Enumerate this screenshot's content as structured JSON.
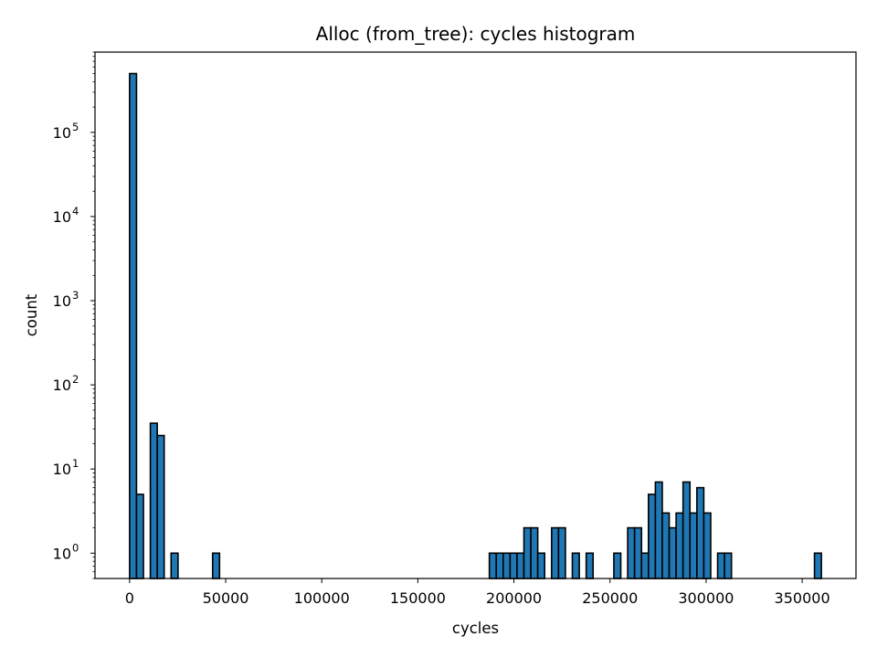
{
  "chart_data": {
    "type": "bar",
    "title": "Alloc (from_tree): cycles histogram",
    "xlabel": "cycles",
    "ylabel": "count",
    "yscale": "log",
    "xlim": [
      -18000,
      378000
    ],
    "ylim": [
      0.5,
      900000
    ],
    "x_ticks": [
      0,
      50000,
      100000,
      150000,
      200000,
      250000,
      300000,
      350000
    ],
    "x_tick_labels": [
      "0",
      "50000",
      "100000",
      "150000",
      "200000",
      "250000",
      "300000",
      "350000"
    ],
    "y_ticks": [
      1,
      10,
      100,
      1000,
      10000,
      100000
    ],
    "y_tick_labels": [
      {
        "base": "10",
        "exp": "0"
      },
      {
        "base": "10",
        "exp": "1"
      },
      {
        "base": "10",
        "exp": "2"
      },
      {
        "base": "10",
        "exp": "3"
      },
      {
        "base": "10",
        "exp": "4"
      },
      {
        "base": "10",
        "exp": "5"
      }
    ],
    "bar_color": "#1f77b4",
    "edge_color": "#000000",
    "bin_width": 3600,
    "bins": [
      {
        "x": 0,
        "count": 500000
      },
      {
        "x": 3600,
        "count": 5
      },
      {
        "x": 10800,
        "count": 35
      },
      {
        "x": 14400,
        "count": 25
      },
      {
        "x": 21600,
        "count": 1
      },
      {
        "x": 43200,
        "count": 1
      },
      {
        "x": 187200,
        "count": 1
      },
      {
        "x": 190800,
        "count": 1
      },
      {
        "x": 194400,
        "count": 1
      },
      {
        "x": 198000,
        "count": 1
      },
      {
        "x": 201600,
        "count": 1
      },
      {
        "x": 205200,
        "count": 2
      },
      {
        "x": 208800,
        "count": 2
      },
      {
        "x": 212400,
        "count": 1
      },
      {
        "x": 219600,
        "count": 2
      },
      {
        "x": 223200,
        "count": 2
      },
      {
        "x": 230400,
        "count": 1
      },
      {
        "x": 237600,
        "count": 1
      },
      {
        "x": 252000,
        "count": 1
      },
      {
        "x": 259200,
        "count": 2
      },
      {
        "x": 262800,
        "count": 2
      },
      {
        "x": 266400,
        "count": 1
      },
      {
        "x": 270000,
        "count": 5
      },
      {
        "x": 273600,
        "count": 7
      },
      {
        "x": 277200,
        "count": 3
      },
      {
        "x": 280800,
        "count": 2
      },
      {
        "x": 284400,
        "count": 3
      },
      {
        "x": 288000,
        "count": 7
      },
      {
        "x": 291600,
        "count": 3
      },
      {
        "x": 295200,
        "count": 6
      },
      {
        "x": 298800,
        "count": 3
      },
      {
        "x": 306000,
        "count": 1
      },
      {
        "x": 309600,
        "count": 1
      },
      {
        "x": 356400,
        "count": 1
      }
    ]
  }
}
